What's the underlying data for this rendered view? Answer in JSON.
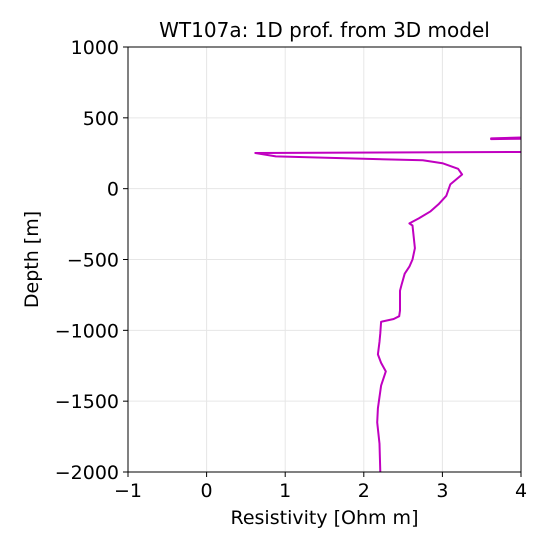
{
  "chart_data": {
    "type": "line",
    "title": "WT107a: 1D prof. from 3D model",
    "xlabel": "Resistivity [Ohm m]",
    "ylabel": "Depth [m]",
    "xlim": [
      -1,
      4
    ],
    "ylim": [
      -2000,
      1000
    ],
    "xticks": [
      -1,
      0,
      1,
      2,
      3,
      4
    ],
    "yticks": [
      1000,
      500,
      0,
      -500,
      -1000,
      -1500,
      -2000
    ],
    "xtick_labels": [
      "−1",
      "0",
      "1",
      "2",
      "3",
      "4"
    ],
    "ytick_labels": [
      "1000",
      "500",
      "0",
      "−500",
      "−1000",
      "−1500",
      "−2000"
    ],
    "grid": true,
    "line_color": "#c000c0",
    "grid_color": "#e6e6e6",
    "series": [
      {
        "x": [
          4.5,
          3.62,
          3.62,
          4.5,
          4.5,
          0.62,
          0.88,
          2.75,
          3.0,
          3.2,
          3.25,
          3.1,
          3.05,
          2.95,
          2.85,
          2.7,
          2.58,
          2.62,
          2.65,
          2.62,
          2.58,
          2.52,
          2.48,
          2.46,
          2.46,
          2.45,
          2.38,
          2.22,
          2.21,
          2.2,
          2.18,
          2.22,
          2.28,
          2.22,
          2.18,
          2.17,
          2.2,
          2.21
        ],
        "y": [
          355,
          350,
          355,
          370,
          260,
          252,
          228,
          200,
          180,
          140,
          100,
          30,
          -50,
          -110,
          -160,
          -210,
          -245,
          -260,
          -420,
          -500,
          -550,
          -600,
          -680,
          -720,
          -860,
          -900,
          -920,
          -940,
          -1020,
          -1080,
          -1170,
          -1230,
          -1290,
          -1390,
          -1550,
          -1650,
          -1800,
          -2000
        ]
      }
    ]
  }
}
